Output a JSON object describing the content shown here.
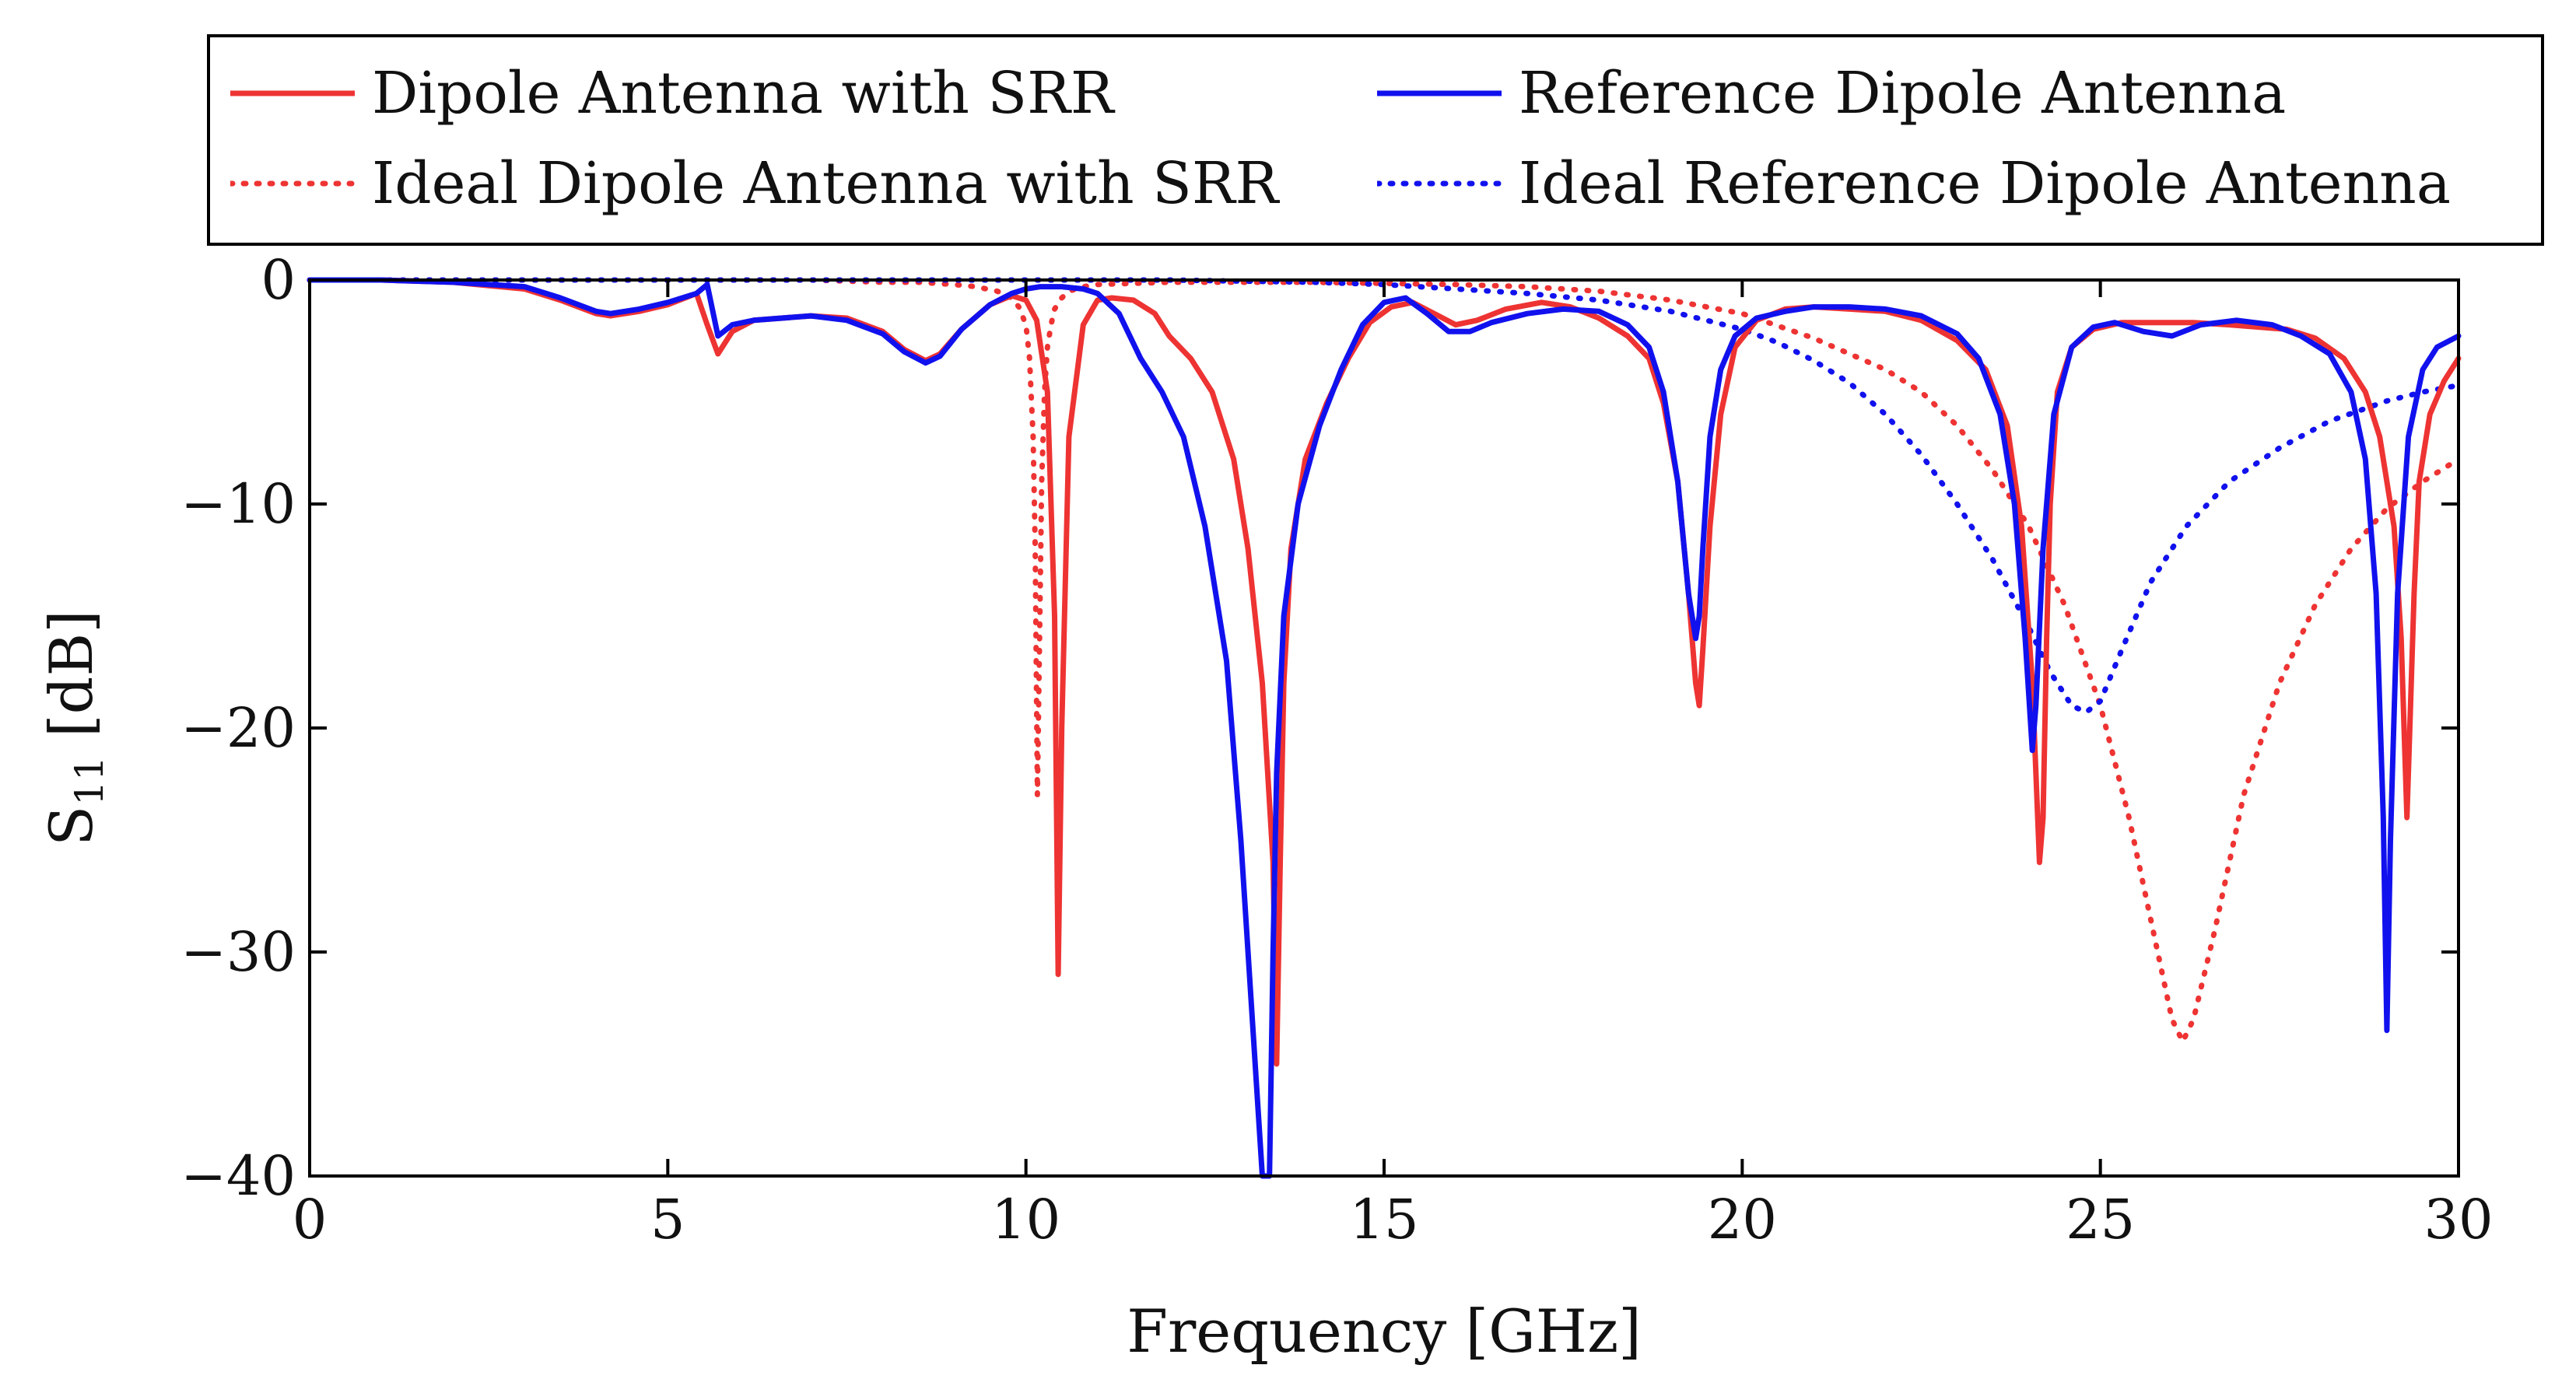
{
  "chart_data": {
    "type": "line",
    "title": "",
    "xlabel": "Frequency [GHz]",
    "ylabel_main": "S",
    "ylabel_sub": "11",
    "ylabel_unit": " [dB]",
    "xlim": [
      0,
      30
    ],
    "ylim": [
      -40,
      0
    ],
    "x_ticks": [
      0,
      5,
      10,
      15,
      20,
      25,
      30
    ],
    "x_tick_labels": [
      "0",
      "5",
      "10",
      "15",
      "20",
      "25",
      "30"
    ],
    "y_ticks": [
      0,
      -10,
      -20,
      -30,
      -40
    ],
    "y_tick_labels": [
      "0",
      "−10",
      "−20",
      "−30",
      "−40"
    ],
    "grid": false,
    "legend_position": "top",
    "series": [
      {
        "name": "Dipole Antenna with SRR",
        "color": "#ee3333",
        "style": "solid",
        "x": [
          0,
          1,
          2,
          3,
          3.5,
          4,
          4.2,
          4.6,
          5,
          5.4,
          5.55,
          5.7,
          5.9,
          6.2,
          7,
          7.5,
          8,
          8.3,
          8.6,
          8.8,
          9.1,
          9.5,
          9.8,
          10,
          10.15,
          10.3,
          10.4,
          10.45,
          10.5,
          10.6,
          10.8,
          11,
          11.2,
          11.5,
          11.8,
          12,
          12.3,
          12.6,
          12.9,
          13.1,
          13.3,
          13.45,
          13.5,
          13.55,
          13.6,
          13.7,
          13.9,
          14.2,
          14.5,
          14.8,
          15.1,
          15.4,
          15.7,
          16,
          16.3,
          16.7,
          17.2,
          17.6,
          18,
          18.4,
          18.7,
          18.9,
          19.1,
          19.25,
          19.35,
          19.4,
          19.45,
          19.55,
          19.7,
          19.9,
          20.2,
          20.6,
          21,
          21.5,
          22,
          22.5,
          23,
          23.4,
          23.7,
          23.9,
          24.05,
          24.15,
          24.2,
          24.25,
          24.3,
          24.4,
          24.6,
          24.9,
          25.3,
          25.8,
          26.3,
          26.8,
          27.2,
          27.6,
          28,
          28.4,
          28.7,
          28.9,
          29.1,
          29.2,
          29.28,
          29.32,
          29.38,
          29.45,
          29.6,
          29.8,
          30
        ],
        "values": [
          0,
          0,
          -0.1,
          -0.4,
          -0.9,
          -1.5,
          -1.6,
          -1.4,
          -1.1,
          -0.6,
          -2,
          -3.3,
          -2.3,
          -1.8,
          -1.6,
          -1.7,
          -2.3,
          -3.1,
          -3.6,
          -3.3,
          -2.2,
          -1.1,
          -0.7,
          -0.9,
          -1.8,
          -5,
          -15,
          -31,
          -20,
          -7,
          -2,
          -0.9,
          -0.8,
          -0.9,
          -1.5,
          -2.5,
          -3.5,
          -5,
          -8,
          -12,
          -18,
          -26,
          -35,
          -26,
          -18,
          -12,
          -8,
          -5.5,
          -3.5,
          -1.9,
          -1.2,
          -1,
          -1.5,
          -2,
          -1.8,
          -1.3,
          -1,
          -1.2,
          -1.7,
          -2.5,
          -3.5,
          -5.5,
          -9,
          -14,
          -18,
          -19,
          -16.5,
          -11,
          -6,
          -3,
          -1.8,
          -1.3,
          -1.2,
          -1.3,
          -1.4,
          -1.8,
          -2.7,
          -4,
          -6.5,
          -11,
          -18,
          -26,
          -24,
          -16,
          -10,
          -5,
          -3,
          -2.2,
          -1.9,
          -1.9,
          -1.9,
          -2,
          -2.1,
          -2.2,
          -2.6,
          -3.5,
          -5,
          -7,
          -11,
          -16,
          -24,
          -20,
          -14,
          -9,
          -6,
          -4.5,
          -3.5
        ]
      },
      {
        "name": "Reference Dipole Antenna",
        "color": "#1111ee",
        "style": "solid",
        "x": [
          0,
          1,
          2,
          3,
          3.5,
          4,
          4.2,
          4.6,
          5,
          5.4,
          5.55,
          5.7,
          5.9,
          6.2,
          7,
          7.5,
          8,
          8.3,
          8.6,
          8.8,
          9.1,
          9.5,
          9.8,
          10,
          10.2,
          10.5,
          10.8,
          11,
          11.3,
          11.6,
          11.9,
          12.2,
          12.5,
          12.8,
          13,
          13.2,
          13.3,
          13.35,
          13.4,
          13.45,
          13.5,
          13.6,
          13.8,
          14.1,
          14.4,
          14.7,
          15,
          15.3,
          15.6,
          15.9,
          16.2,
          16.5,
          17,
          17.5,
          18,
          18.4,
          18.7,
          18.9,
          19.1,
          19.25,
          19.35,
          19.4,
          19.45,
          19.55,
          19.7,
          19.9,
          20.2,
          20.6,
          21,
          21.5,
          22,
          22.5,
          23,
          23.3,
          23.6,
          23.8,
          23.95,
          24.05,
          24.1,
          24.2,
          24.35,
          24.6,
          24.9,
          25.2,
          25.6,
          26,
          26.4,
          26.9,
          27.4,
          27.8,
          28.2,
          28.5,
          28.7,
          28.85,
          28.95,
          29,
          29.05,
          29.15,
          29.3,
          29.5,
          29.7,
          30
        ],
        "values": [
          0,
          0,
          -0.1,
          -0.3,
          -0.8,
          -1.4,
          -1.5,
          -1.3,
          -1,
          -0.6,
          -0.2,
          -2.5,
          -2,
          -1.8,
          -1.6,
          -1.8,
          -2.4,
          -3.2,
          -3.7,
          -3.4,
          -2.2,
          -1.1,
          -0.6,
          -0.4,
          -0.3,
          -0.3,
          -0.4,
          -0.6,
          -1.5,
          -3.5,
          -5,
          -7,
          -11,
          -17,
          -25,
          -35,
          -40,
          -40,
          -40,
          -30,
          -22,
          -15,
          -10,
          -6.5,
          -4,
          -2,
          -1,
          -0.8,
          -1.5,
          -2.3,
          -2.3,
          -1.9,
          -1.5,
          -1.3,
          -1.4,
          -2,
          -3,
          -5,
          -9,
          -14,
          -16,
          -15,
          -12,
          -7,
          -4,
          -2.5,
          -1.7,
          -1.4,
          -1.2,
          -1.2,
          -1.3,
          -1.6,
          -2.4,
          -3.5,
          -6,
          -10,
          -16,
          -21,
          -19,
          -12,
          -6,
          -3,
          -2.1,
          -1.9,
          -2.3,
          -2.5,
          -2,
          -1.8,
          -2,
          -2.5,
          -3.3,
          -5,
          -8,
          -14,
          -24,
          -33.5,
          -25,
          -14,
          -7,
          -4,
          -3,
          -2.5
        ]
      },
      {
        "name": "Ideal Dipole Antenna with SRR",
        "color": "#ee3333",
        "style": "dotted",
        "x": [
          0,
          2,
          4,
          6,
          7,
          8,
          8.5,
          9,
          9.3,
          9.6,
          9.8,
          9.9,
          10,
          10.05,
          10.1,
          10.13,
          10.16,
          10.19,
          10.22,
          10.26,
          10.3,
          10.35,
          10.4,
          10.5,
          10.6,
          10.8,
          11,
          12,
          14,
          16,
          17,
          18,
          19,
          20,
          21,
          22,
          22.5,
          23,
          23.5,
          24,
          24.5,
          25,
          25.4,
          25.8,
          26,
          26.15,
          26.3,
          26.6,
          27,
          27.5,
          28,
          28.5,
          29,
          29.5,
          30
        ],
        "values": [
          0,
          0,
          0,
          0,
          0,
          -0.1,
          -0.1,
          -0.2,
          -0.3,
          -0.5,
          -0.8,
          -1.2,
          -2,
          -3.5,
          -7,
          -12,
          -23,
          -16,
          -9,
          -5,
          -3,
          -2,
          -1.3,
          -0.8,
          -0.5,
          -0.3,
          -0.2,
          -0.1,
          -0.1,
          -0.2,
          -0.3,
          -0.5,
          -0.9,
          -1.5,
          -2.6,
          -4,
          -5,
          -6.5,
          -8.5,
          -11,
          -14.5,
          -19,
          -24,
          -30,
          -33,
          -34,
          -33,
          -29,
          -23,
          -18,
          -14.5,
          -12,
          -10.2,
          -9,
          -8
        ]
      },
      {
        "name": "Ideal Reference Dipole Antenna",
        "color": "#1111ee",
        "style": "dotted",
        "x": [
          0,
          2,
          4,
          6,
          8,
          10,
          12,
          14,
          15,
          16,
          17,
          18,
          19,
          20,
          20.5,
          21,
          21.5,
          22,
          22.5,
          23,
          23.5,
          24,
          24.3,
          24.6,
          24.8,
          25,
          25.3,
          25.7,
          26.2,
          26.8,
          27.5,
          28.2,
          29,
          29.5,
          30
        ],
        "values": [
          0,
          0,
          0,
          0,
          0,
          0,
          0,
          -0.1,
          -0.2,
          -0.4,
          -0.6,
          -0.9,
          -1.4,
          -2.2,
          -2.8,
          -3.6,
          -4.6,
          -6,
          -7.8,
          -10,
          -12.5,
          -15.5,
          -17.5,
          -19,
          -19.3,
          -18.8,
          -16.5,
          -13.5,
          -11,
          -9,
          -7.5,
          -6.3,
          -5.4,
          -5,
          -4.7
        ]
      }
    ]
  }
}
